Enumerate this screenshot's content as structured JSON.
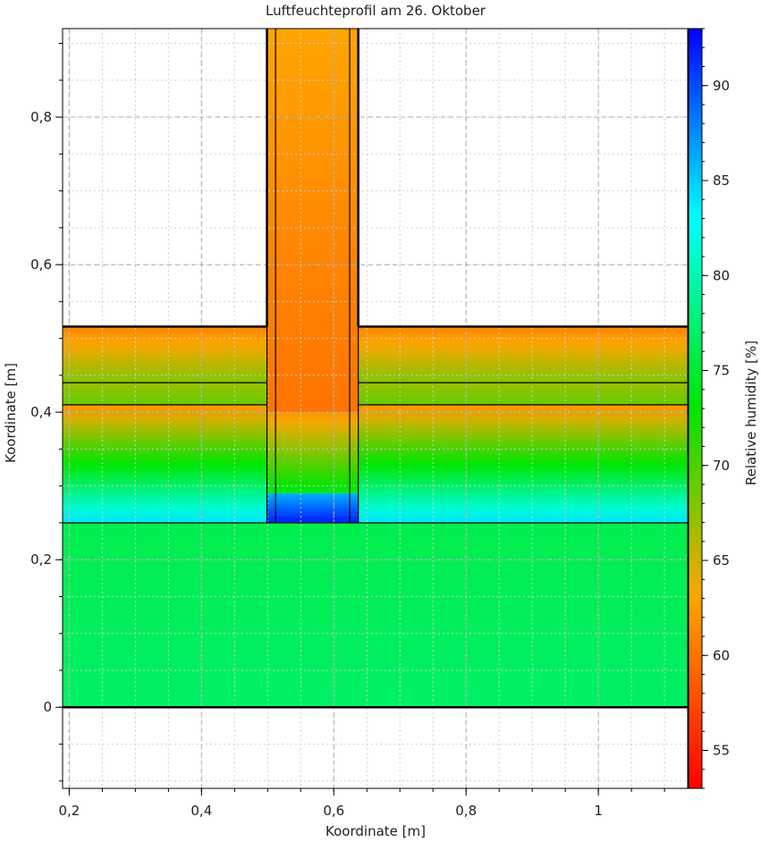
{
  "chart_data": {
    "type": "heatmap",
    "title": "Luftfeuchteprofil am 26. Oktober",
    "xlabel": "Koordinate [m]",
    "ylabel": "Koordinate [m]",
    "colorbar_label": "Relative humidity [%]",
    "xlim": [
      0.19,
      1.135
    ],
    "ylim": [
      -0.11,
      0.92
    ],
    "colorbar_range": [
      53,
      93
    ],
    "x_ticks": [
      0.2,
      0.4,
      0.6,
      0.8,
      1.0
    ],
    "x_tick_labels": [
      "0,2",
      "0,4",
      "0,6",
      "0,8",
      "1"
    ],
    "y_ticks": [
      0,
      0.2,
      0.4,
      0.6,
      0.8
    ],
    "y_tick_labels": [
      "0",
      "0,2",
      "0,4",
      "0,6",
      "0,8"
    ],
    "colorbar_ticks": [
      55,
      60,
      65,
      70,
      75,
      80,
      85,
      90
    ],
    "grid": true,
    "regions": [
      {
        "x": [
          0.19,
          1.135
        ],
        "y": [
          0.0,
          0.25
        ],
        "rh_top": 76,
        "rh_bottom": 77
      },
      {
        "x": [
          0.19,
          0.499
        ],
        "y": [
          0.25,
          0.41
        ],
        "rh_top": 62,
        "rh_bottom": 84
      },
      {
        "x": [
          0.637,
          1.135
        ],
        "y": [
          0.25,
          0.41
        ],
        "rh_top": 62,
        "rh_bottom": 84
      },
      {
        "x": [
          0.19,
          0.499
        ],
        "y": [
          0.41,
          0.44
        ],
        "rh_top": 67,
        "rh_bottom": 69
      },
      {
        "x": [
          0.637,
          1.135
        ],
        "y": [
          0.41,
          0.44
        ],
        "rh_top": 67,
        "rh_bottom": 69
      },
      {
        "x": [
          0.19,
          0.499
        ],
        "y": [
          0.44,
          0.516
        ],
        "rh_top": 61,
        "rh_bottom": 68
      },
      {
        "x": [
          0.637,
          1.135
        ],
        "y": [
          0.44,
          0.516
        ],
        "rh_top": 61,
        "rh_bottom": 68
      },
      {
        "x": [
          0.499,
          0.637
        ],
        "y": [
          0.25,
          0.29
        ],
        "rh_top": 86,
        "rh_bottom": 92
      },
      {
        "x": [
          0.499,
          0.637
        ],
        "y": [
          0.29,
          0.4
        ],
        "rh_top": 62,
        "rh_bottom": 74
      },
      {
        "x": [
          0.499,
          0.637
        ],
        "y": [
          0.4,
          0.6
        ],
        "rh_top": 61,
        "rh_bottom": 60
      },
      {
        "x": [
          0.499,
          0.637
        ],
        "y": [
          0.6,
          0.92
        ],
        "rh_top": 63,
        "rh_bottom": 61
      }
    ],
    "boundaries": {
      "horizontal": [
        {
          "y": 0.0,
          "x": [
            0.19,
            1.135
          ],
          "bold": true
        },
        {
          "y": 0.25,
          "x": [
            0.19,
            1.135
          ],
          "bold": false
        },
        {
          "y": 0.41,
          "x": [
            0.19,
            0.499
          ],
          "bold": false
        },
        {
          "y": 0.41,
          "x": [
            0.637,
            1.135
          ],
          "bold": false
        },
        {
          "y": 0.44,
          "x": [
            0.19,
            0.499
          ],
          "bold": false
        },
        {
          "y": 0.44,
          "x": [
            0.637,
            1.135
          ],
          "bold": false
        },
        {
          "y": 0.516,
          "x": [
            0.19,
            0.499
          ],
          "bold": true
        },
        {
          "y": 0.516,
          "x": [
            0.637,
            1.135
          ],
          "bold": true
        }
      ],
      "vertical": [
        {
          "x": 0.499,
          "y": [
            0.25,
            0.92
          ],
          "bold": false
        },
        {
          "x": 0.512,
          "y": [
            0.25,
            0.92
          ],
          "bold": false
        },
        {
          "x": 0.624,
          "y": [
            0.25,
            0.92
          ],
          "bold": false
        },
        {
          "x": 0.637,
          "y": [
            0.25,
            0.92
          ],
          "bold": false
        },
        {
          "x": 0.499,
          "y": [
            0.516,
            0.92
          ],
          "bold": true
        },
        {
          "x": 0.637,
          "y": [
            0.516,
            0.92
          ],
          "bold": true
        }
      ]
    }
  }
}
